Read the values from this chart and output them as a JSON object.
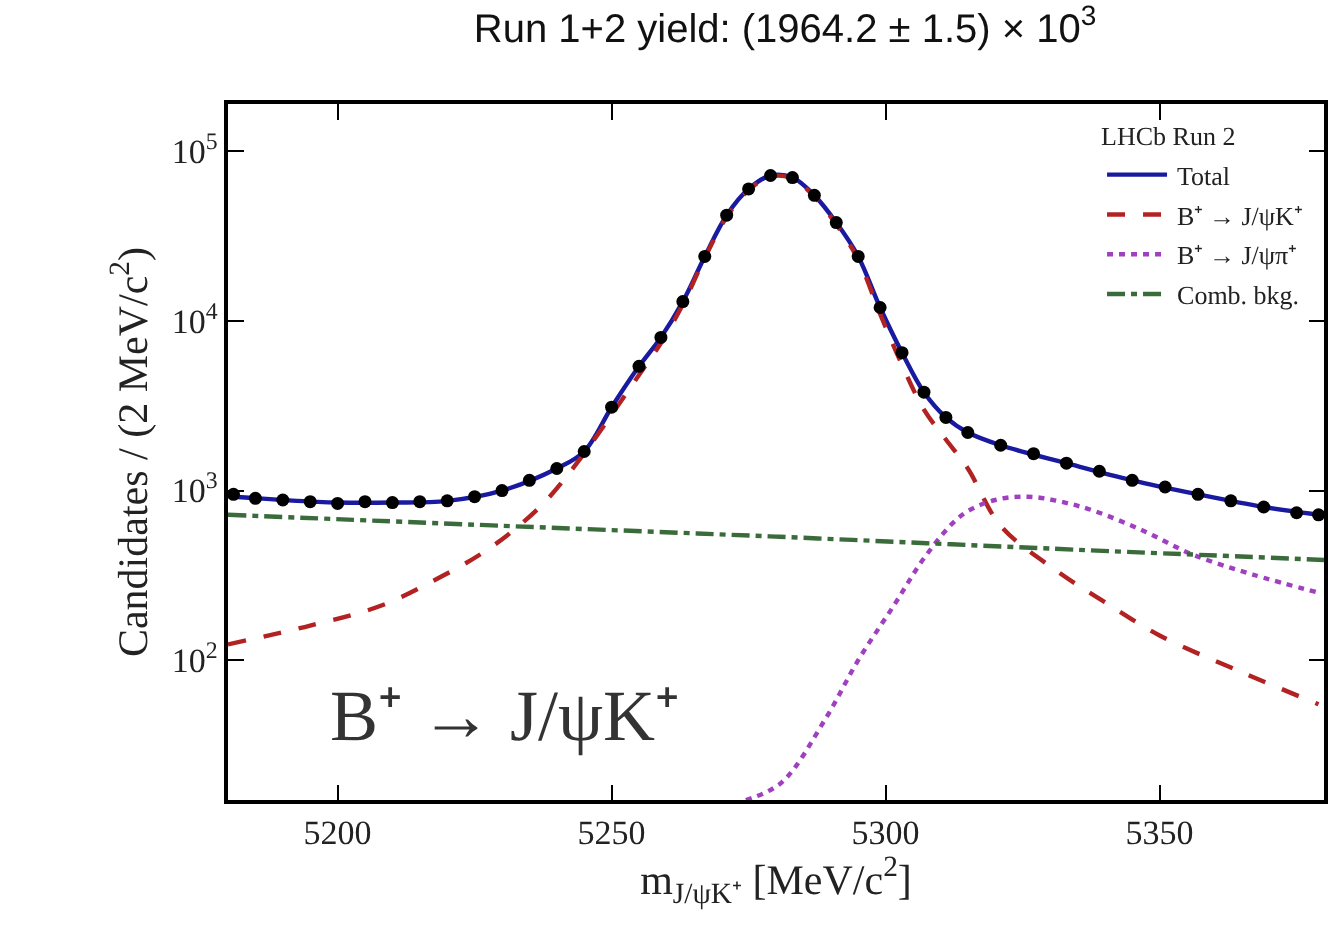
{
  "chart_data": {
    "type": "line",
    "title": "Run 1+2 yield: (1964.2 ± 1.5) × 10$^{3}$",
    "xlabel": "m$_{J/ψK⁺}$ [MeV/c$^{2}$]",
    "ylabel": "Candidates / (2 MeV/c$^{2}$)",
    "legend_title": "LHCb Run 2",
    "annotations": [
      "B⁺ → J/ψK⁺"
    ],
    "xlim": [
      5180,
      5380
    ],
    "xticks": [
      5200,
      5250,
      5300,
      5350
    ],
    "ylim": [
      15,
      190000
    ],
    "log": true,
    "yticks": [
      {
        "value": 100,
        "label": "10$^{2}$"
      },
      {
        "value": 1000,
        "label": "10$^{3}$"
      },
      {
        "value": 10000,
        "label": "10$^{4}$"
      },
      {
        "value": 100000,
        "label": "10$^{5}$"
      }
    ],
    "legend": "top right",
    "series": [
      {
        "type": "scatter",
        "color": "#000000",
        "marker": "circle",
        "x": [
          5181,
          5185,
          5190,
          5195,
          5200,
          5205,
          5210,
          5215,
          5220,
          5225,
          5230,
          5235,
          5240,
          5245,
          5250,
          5255,
          5259,
          5263,
          5267,
          5271,
          5275,
          5279,
          5283,
          5287,
          5291,
          5295,
          5299,
          5303,
          5307,
          5311,
          5315,
          5321,
          5327,
          5333,
          5339,
          5345,
          5351,
          5357,
          5363,
          5369,
          5375,
          5379
        ],
        "values": [
          950,
          900,
          880,
          860,
          840,
          860,
          850,
          860,
          870,
          920,
          1000,
          1150,
          1350,
          1700,
          3100,
          5400,
          8000,
          13000,
          24000,
          42000,
          60000,
          72000,
          70000,
          55000,
          38000,
          24000,
          12000,
          6500,
          3800,
          2700,
          2200,
          1850,
          1650,
          1450,
          1300,
          1150,
          1050,
          950,
          870,
          800,
          740,
          720
        ]
      },
      {
        "name": "Total",
        "color": "#1a1aa0",
        "line_style": "solid",
        "x": [
          5181,
          5190,
          5200,
          5210,
          5220,
          5230,
          5240,
          5245,
          5250,
          5255,
          5259,
          5263,
          5267,
          5271,
          5275,
          5279,
          5283,
          5287,
          5291,
          5295,
          5299,
          5303,
          5307,
          5311,
          5315,
          5321,
          5333,
          5345,
          5357,
          5369,
          5379
        ],
        "values": [
          920,
          880,
          850,
          850,
          870,
          1000,
          1350,
          1700,
          3100,
          5400,
          8000,
          13000,
          24000,
          42000,
          60000,
          72000,
          70000,
          55000,
          38000,
          24000,
          12000,
          6500,
          3800,
          2700,
          2200,
          1850,
          1450,
          1150,
          950,
          800,
          720
        ]
      },
      {
        "name": "B⁺ → J/ψK⁺",
        "color": "#b22222",
        "line_style": "dashed",
        "x": [
          5180,
          5195,
          5208,
          5218,
          5226,
          5232,
          5238,
          5244,
          5250,
          5255,
          5259,
          5263,
          5267,
          5271,
          5275,
          5279,
          5283,
          5287,
          5291,
          5295,
          5299,
          5303,
          5307,
          5311,
          5315,
          5321,
          5331,
          5340,
          5350,
          5365,
          5379
        ],
        "values": [
          124,
          160,
          210,
          300,
          420,
          580,
          870,
          1500,
          2800,
          4800,
          7400,
          12500,
          23500,
          41000,
          59000,
          71000,
          69000,
          54000,
          37000,
          23000,
          11000,
          5500,
          3000,
          2000,
          1350,
          620,
          340,
          220,
          140,
          85,
          55
        ]
      },
      {
        "name": "B⁺ → J/ψπ⁺",
        "color": "#a040c0",
        "line_style": "dotted",
        "x": [
          5274.5,
          5281,
          5289,
          5295,
          5301.5,
          5307.5,
          5314,
          5320,
          5326,
          5332,
          5338,
          5347,
          5356,
          5367,
          5379
        ],
        "values": [
          15,
          19,
          45,
          100,
          210,
          420,
          720,
          880,
          920,
          860,
          760,
          580,
          420,
          320,
          250
        ]
      },
      {
        "name": "Comb. bkg.",
        "color": "#3a6b3a",
        "line_style": "dashdot",
        "x": [
          5180,
          5230,
          5280,
          5330,
          5380
        ],
        "values": [
          720,
          620,
          535,
          455,
          390
        ]
      }
    ]
  }
}
